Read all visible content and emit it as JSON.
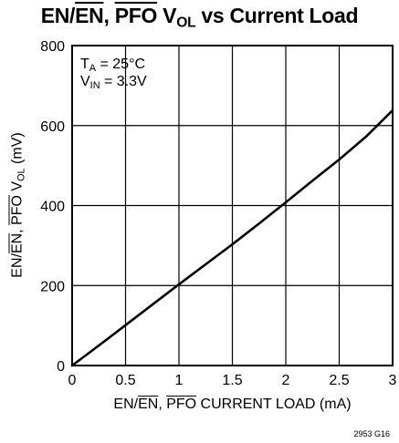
{
  "chart_data": {
    "type": "line",
    "title": {
      "p1": "EN/",
      "p2": "EN",
      "p3": ", ",
      "p4": "PFO",
      "p5": " V",
      "p6": "OL",
      "p7": " vs Current Load"
    },
    "xlabel": {
      "p1": "EN/",
      "p2": "EN",
      "p3": ", ",
      "p4": "PFO",
      "p5": " CURRENT LOAD (mA)"
    },
    "ylabel": {
      "p1": "EN/",
      "p2": "EN",
      "p3": ", ",
      "p4": "PFO",
      "p5": " V",
      "p6": "OL",
      "p7": " (mV)"
    },
    "annotations": {
      "ta_symbol": "T",
      "ta_sub": "A",
      "ta_value": " = 25°C",
      "vin_symbol": "V",
      "vin_sub": "IN",
      "vin_value": " = 3.3V"
    },
    "xlim": [
      0,
      3
    ],
    "ylim": [
      0,
      800
    ],
    "xticks": [
      0,
      0.5,
      1,
      1.5,
      2,
      2.5,
      3
    ],
    "xtick_labels": [
      "0",
      "0.5",
      "1",
      "1.5",
      "2",
      "2.5",
      "3"
    ],
    "yticks": [
      0,
      200,
      400,
      600,
      800
    ],
    "ytick_labels": [
      "0",
      "200",
      "400",
      "600",
      "800"
    ],
    "grid": true,
    "series": [
      {
        "x": [
          0,
          0.25,
          0.5,
          0.75,
          1,
          1.25,
          1.5,
          1.75,
          2,
          2.25,
          2.5,
          2.75,
          3
        ],
        "y": [
          0,
          50,
          101,
          152,
          203,
          253,
          303,
          355,
          408,
          462,
          515,
          572,
          638
        ]
      }
    ],
    "figure_id": "2953 G16"
  }
}
